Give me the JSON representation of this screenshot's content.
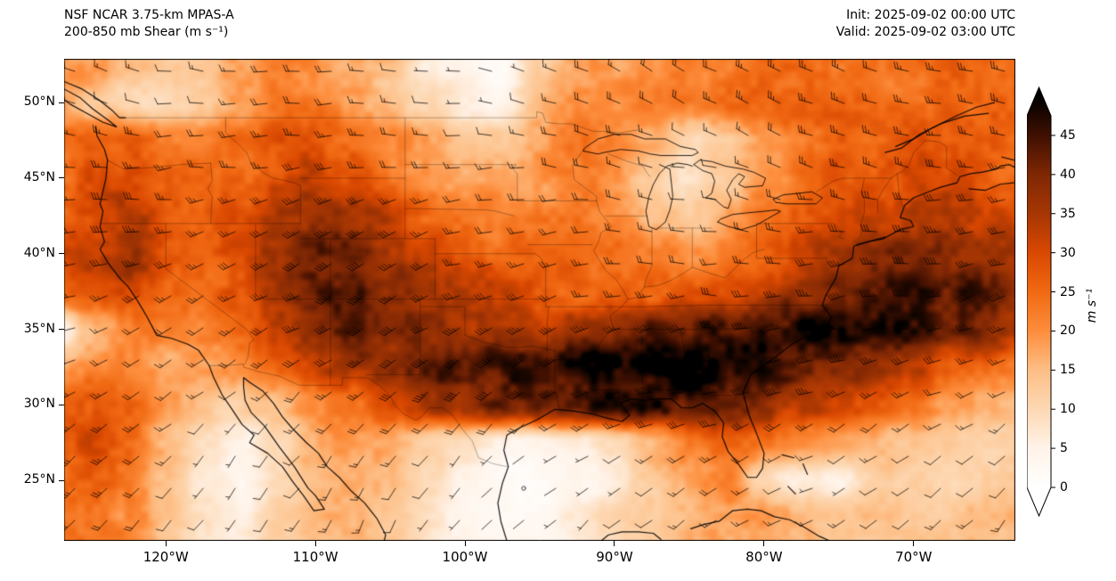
{
  "header": {
    "line1": "NSF NCAR 3.75-km MPAS-A",
    "line2": "200-850 mb Shear (m s⁻¹)",
    "init": "Init: 2025-09-02 00:00 UTC",
    "valid": "Valid: 2025-09-02 03:00 UTC"
  },
  "axes": {
    "lat_ticks": [
      {
        "label": "25°N",
        "value": 25
      },
      {
        "label": "30°N",
        "value": 30
      },
      {
        "label": "35°N",
        "value": 35
      },
      {
        "label": "40°N",
        "value": 40
      },
      {
        "label": "45°N",
        "value": 45
      },
      {
        "label": "50°N",
        "value": 50
      }
    ],
    "lon_ticks": [
      {
        "label": "120°W",
        "value": -120
      },
      {
        "label": "110°W",
        "value": -110
      },
      {
        "label": "100°W",
        "value": -100
      },
      {
        "label": "90°W",
        "value": -90
      },
      {
        "label": "80°W",
        "value": -80
      },
      {
        "label": "70°W",
        "value": -70
      }
    ]
  },
  "colorbar": {
    "label": "m s⁻¹",
    "tick_values": [
      0,
      5,
      10,
      15,
      20,
      25,
      30,
      35,
      40,
      45
    ],
    "extend": "both",
    "stops": [
      {
        "v": 0,
        "color": "#ffffff"
      },
      {
        "v": 5,
        "color": "#fff3e8"
      },
      {
        "v": 10,
        "color": "#fdd8b3"
      },
      {
        "v": 15,
        "color": "#fdbe85"
      },
      {
        "v": 20,
        "color": "#fd8d3c"
      },
      {
        "v": 25,
        "color": "#f16913"
      },
      {
        "v": 30,
        "color": "#d94801"
      },
      {
        "v": 35,
        "color": "#a63603"
      },
      {
        "v": 40,
        "color": "#7f2704"
      },
      {
        "v": 45,
        "color": "#3f1001"
      },
      {
        "v": 50,
        "color": "#000000"
      }
    ]
  },
  "chart_data": {
    "type": "heatmap",
    "title": "200-850 mb Shear (m s⁻¹)",
    "model": "NSF NCAR 3.75-km MPAS-A",
    "init": "2025-09-02 00:00 UTC",
    "valid": "2025-09-02 03:00 UTC",
    "units": "m s⁻¹",
    "value_range": [
      0,
      50
    ],
    "lon_range": [
      -126.8,
      -63.2
    ],
    "lat_range": [
      21.0,
      52.9
    ],
    "wind_barbs": {
      "present": true,
      "calm_circle_below": 2.5,
      "half_barb": 5,
      "full_barb": 10,
      "pennant": 50
    },
    "grid": {
      "lons": [
        -127.5,
        -125,
        -122.5,
        -120,
        -117.5,
        -115,
        -112.5,
        -110,
        -107.5,
        -105,
        -102.5,
        -100,
        -97.5,
        -95,
        -92.5,
        -90,
        -87.5,
        -85,
        -82.5,
        -80,
        -77.5,
        -75,
        -72.5,
        -70,
        -67.5,
        -65,
        -62.5
      ],
      "lats": [
        52.5,
        50,
        47.5,
        45,
        42.5,
        40,
        37.5,
        35,
        32.5,
        30,
        27.5,
        25,
        22.5
      ],
      "shear": [
        [
          20,
          19,
          16,
          13,
          14,
          18,
          21,
          20,
          17,
          14,
          6,
          4,
          2,
          12,
          19,
          18,
          20,
          21,
          23,
          25,
          25,
          24,
          22,
          24,
          26,
          26,
          25
        ],
        [
          17,
          14,
          10,
          9,
          13,
          18,
          22,
          22,
          19,
          15,
          10,
          6,
          5,
          14,
          21,
          20,
          22,
          23,
          25,
          26,
          26,
          25,
          23,
          25,
          27,
          27,
          26
        ],
        [
          22,
          26,
          27,
          23,
          21,
          24,
          27,
          28,
          26,
          21,
          17,
          13,
          13,
          17,
          22,
          20,
          15,
          10,
          14,
          20,
          24,
          26,
          26,
          27,
          28,
          27,
          25
        ],
        [
          25,
          28,
          30,
          26,
          24,
          26,
          29,
          31,
          28,
          24,
          20,
          17,
          17,
          19,
          22,
          18,
          12,
          8,
          12,
          18,
          24,
          27,
          27,
          29,
          29,
          27,
          25
        ],
        [
          27,
          31,
          34,
          28,
          26,
          28,
          33,
          37,
          36,
          32,
          27,
          23,
          21,
          21,
          22,
          20,
          16,
          12,
          16,
          22,
          27,
          29,
          31,
          33,
          33,
          31,
          29
        ],
        [
          28,
          33,
          37,
          30,
          26,
          30,
          37,
          41,
          41,
          36,
          30,
          27,
          25,
          24,
          24,
          24,
          22,
          20,
          22,
          26,
          30,
          34,
          37,
          39,
          37,
          35,
          33
        ],
        [
          24,
          28,
          31,
          26,
          24,
          28,
          37,
          43,
          43,
          39,
          34,
          32,
          30,
          28,
          26,
          26,
          26,
          27,
          29,
          33,
          37,
          41,
          45,
          47,
          45,
          41,
          37
        ],
        [
          2,
          14,
          22,
          22,
          22,
          26,
          33,
          39,
          41,
          39,
          38,
          36,
          34,
          34,
          36,
          38,
          40,
          42,
          45,
          47,
          49,
          49,
          48,
          46,
          42,
          38,
          34
        ],
        [
          17,
          20,
          20,
          18,
          18,
          20,
          26,
          31,
          35,
          39,
          43,
          45,
          46,
          47,
          49,
          50,
          50,
          50,
          48,
          46,
          44,
          40,
          36,
          32,
          28,
          25,
          22
        ],
        [
          24,
          28,
          26,
          19,
          13,
          11,
          14,
          20,
          24,
          28,
          33,
          37,
          41,
          43,
          45,
          46,
          46,
          44,
          42,
          38,
          34,
          30,
          26,
          22,
          19,
          17,
          15
        ],
        [
          28,
          30,
          25,
          16,
          8,
          5,
          10,
          16,
          19,
          17,
          12,
          8,
          5,
          4,
          6,
          10,
          15,
          22,
          26,
          24,
          20,
          17,
          15,
          13,
          12,
          12,
          13
        ],
        [
          26,
          28,
          23,
          14,
          7,
          4,
          10,
          15,
          17,
          14,
          10,
          5,
          2,
          2,
          4,
          6,
          13,
          18,
          22,
          10,
          6,
          5,
          12,
          11,
          11,
          12,
          13
        ],
        [
          22,
          24,
          21,
          14,
          9,
          7,
          12,
          15,
          15,
          12,
          8,
          4,
          3,
          3,
          6,
          10,
          13,
          16,
          18,
          18,
          16,
          14,
          13,
          13,
          14,
          15,
          15
        ]
      ]
    }
  }
}
